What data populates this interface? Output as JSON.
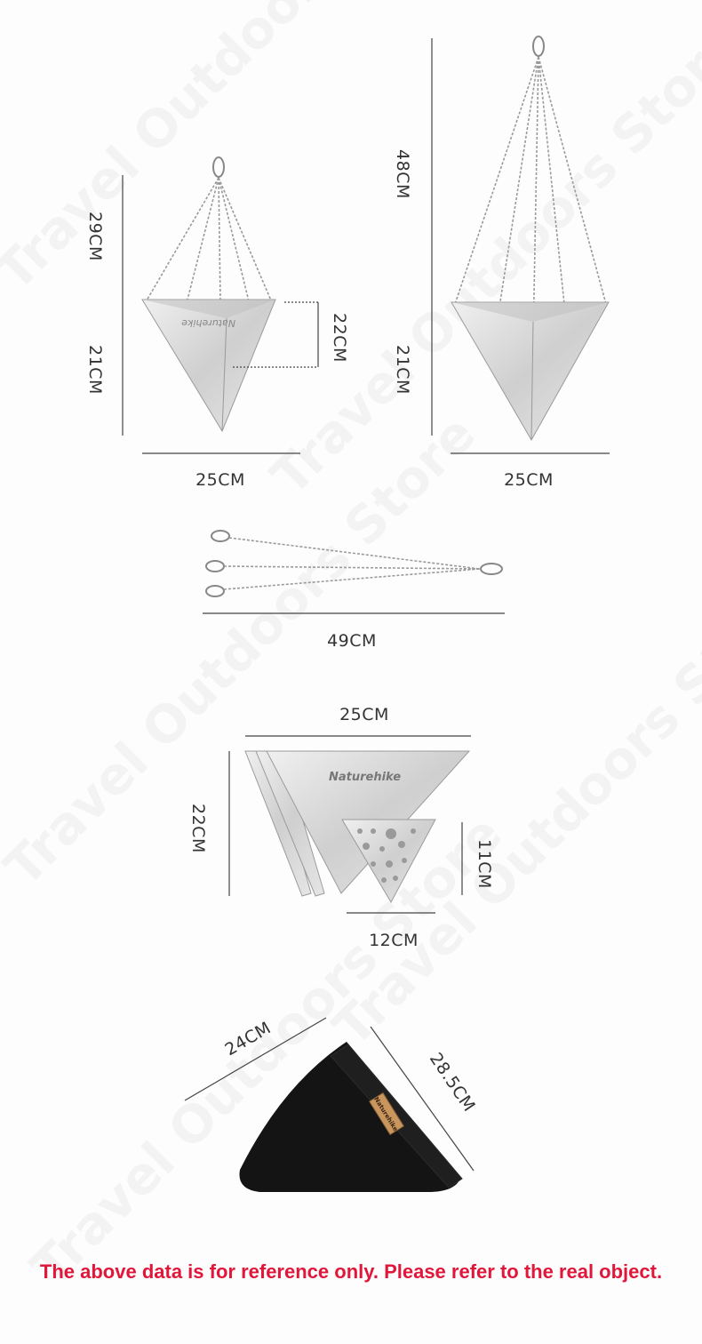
{
  "watermark": "Travel Outdoors Store",
  "brand": "Naturehike",
  "stove_short": {
    "total_height": "29CM",
    "stove_height": "21CM",
    "depth": "22CM",
    "width": "25CM"
  },
  "stove_long": {
    "total_height": "48CM",
    "stove_height": "21CM",
    "width": "25CM"
  },
  "chain": {
    "length": "49CM"
  },
  "panels": {
    "width": "25CM",
    "height": "22CM",
    "small_height": "11CM",
    "small_width": "12CM"
  },
  "bag": {
    "width": "24CM",
    "length": "28.5CM"
  },
  "footer_note": "The above data is for reference only. Please refer to the real object.",
  "colors": {
    "note": "#e0173a",
    "bag": "#141414",
    "metal": "#d6d6d6"
  }
}
